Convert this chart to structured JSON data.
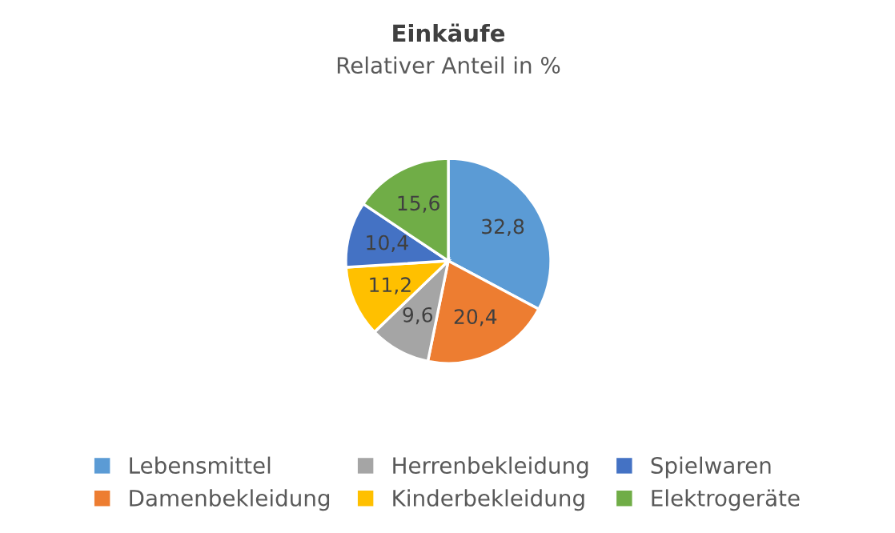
{
  "chart_data": {
    "type": "pie",
    "title": "Einkäufe",
    "subtitle": "Relativer Anteil in %",
    "categories": [
      "Lebensmittel",
      "Damenbekleidung",
      "Herrenbekleidung",
      "Kinderbekleidung",
      "Spielwaren",
      "Elektrogeräte"
    ],
    "values": [
      32.8,
      20.4,
      9.6,
      11.2,
      10.4,
      15.6
    ],
    "value_labels": [
      "32,8",
      "20,4",
      "9,6",
      "11,2",
      "10,4",
      "15,6"
    ],
    "colors": [
      "#5b9bd5",
      "#ed7d31",
      "#a5a5a5",
      "#ffc000",
      "#4472c4",
      "#70ad47"
    ],
    "legend": "bottom"
  }
}
